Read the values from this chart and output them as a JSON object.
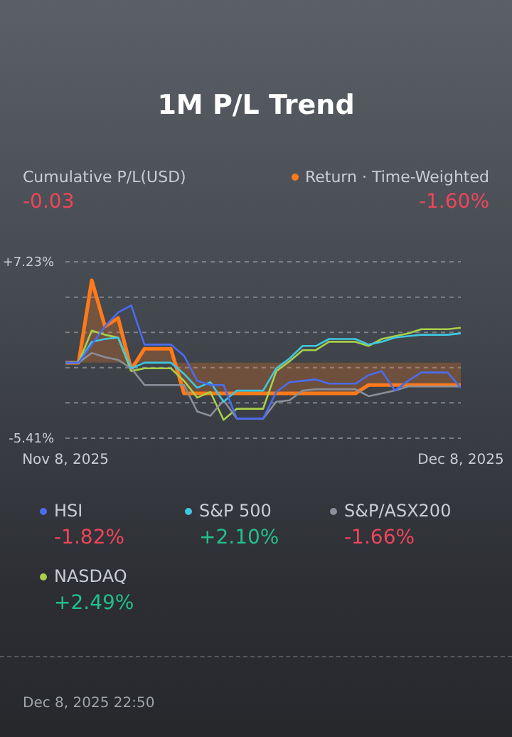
{
  "chart_data": {
    "type": "line",
    "title": "1M P/L Trend",
    "annotations": [
      "Cumulative P/L(USD)",
      "-0.03",
      "Dec 8, 2025 22:50",
      "-1.60%",
      "-1.82%",
      "+2.10%",
      "-1.66%",
      "+2.49%"
    ],
    "x": [
      "2025-11-08",
      "2025-11-09",
      "2025-11-10",
      "2025-11-11",
      "2025-11-12",
      "2025-11-13",
      "2025-11-14",
      "2025-11-15",
      "2025-11-16",
      "2025-11-17",
      "2025-11-18",
      "2025-11-19",
      "2025-11-20",
      "2025-11-21",
      "2025-11-22",
      "2025-11-23",
      "2025-11-24",
      "2025-11-25",
      "2025-11-26",
      "2025-11-27",
      "2025-11-28",
      "2025-11-29",
      "2025-11-30",
      "2025-12-01",
      "2025-12-02",
      "2025-12-03",
      "2025-12-04",
      "2025-12-05",
      "2025-12-06",
      "2025-12-07",
      "2025-12-08"
    ],
    "series": [
      {
        "name": "Return · Time-Weighted",
        "type": "area",
        "color": "#ff7a1a",
        "values": [
          0,
          0,
          5.9,
          2.6,
          3.2,
          -0.5,
          1,
          1,
          1,
          -2.2,
          -2.2,
          -2.2,
          -2.2,
          -2.2,
          -2.2,
          -2.2,
          -2.2,
          -2.2,
          -2.2,
          -2.2,
          -2.2,
          -2.2,
          -2.2,
          -1.6,
          -1.6,
          -1.6,
          -1.6,
          -1.6,
          -1.6,
          -1.6,
          -1.6
        ]
      },
      {
        "name": "HSI",
        "color": "#4a6cf0",
        "values": [
          0,
          0,
          1.3,
          2.6,
          3.6,
          4.1,
          1.3,
          1.3,
          1.3,
          0.5,
          -1.3,
          -1.6,
          -1.6,
          -4,
          -4,
          -4,
          -2.1,
          -1.4,
          -1.3,
          -1.2,
          -1.5,
          -1.5,
          -1.5,
          -0.9,
          -0.6,
          -2,
          -1.3,
          -0.7,
          -0.7,
          -0.7,
          -1.8
        ]
      },
      {
        "name": "S&P 500",
        "color": "#3ec8e0",
        "values": [
          0,
          0,
          1.5,
          1.7,
          1.8,
          -0.4,
          0,
          0,
          0,
          -0.8,
          -1.8,
          -1.4,
          -2.8,
          -2,
          -2,
          -2,
          -0.4,
          0.3,
          1.2,
          1.2,
          1.7,
          1.7,
          1.7,
          1.3,
          1.5,
          1.8,
          1.9,
          2,
          2,
          2,
          2.1
        ]
      },
      {
        "name": "S&P/ASX200",
        "color": "#8a8f99",
        "values": [
          0,
          0,
          0.7,
          0.4,
          0.2,
          -0.4,
          -1.6,
          -1.6,
          -1.6,
          -1.6,
          -3.5,
          -3.8,
          -2.7,
          -4,
          -4,
          -4,
          -2.8,
          -2.7,
          -2,
          -1.9,
          -1.9,
          -1.9,
          -1.9,
          -2.4,
          -2.2,
          -2,
          -1.7,
          -1.7,
          -1.7,
          -1.7,
          -1.7
        ]
      },
      {
        "name": "NASDAQ",
        "color": "#a8d04a",
        "values": [
          0,
          0,
          2.3,
          2,
          1.8,
          -0.6,
          -0.4,
          -0.4,
          -0.4,
          -1.3,
          -2.5,
          -2.1,
          -4.1,
          -3.3,
          -3.3,
          -3.3,
          -0.6,
          0.1,
          0.9,
          0.9,
          1.5,
          1.5,
          1.5,
          1.2,
          1.7,
          1.9,
          2.1,
          2.4,
          2.4,
          2.4,
          2.5
        ]
      }
    ],
    "xlim": [
      "2025-11-08",
      "2025-12-08"
    ],
    "xticks": [
      {
        "value": "2025-11-08",
        "label": "Nov 8, 2025"
      },
      {
        "value": "2025-12-08",
        "label": "Dec 8, 2025"
      }
    ],
    "ylim": [
      -5.41,
      7.23
    ],
    "yticks": [
      {
        "value": -5.41,
        "label": "-5.41%"
      },
      {
        "value": -2.88,
        "label": null
      },
      {
        "value": -0.35,
        "label": null
      },
      {
        "value": 2.17,
        "label": null
      },
      {
        "value": 4.7,
        "label": null
      },
      {
        "value": 7.23,
        "label": "+7.23%"
      }
    ],
    "grid": "y",
    "legend": "bottom",
    "marker": "none",
    "line_style": "solid"
  }
}
